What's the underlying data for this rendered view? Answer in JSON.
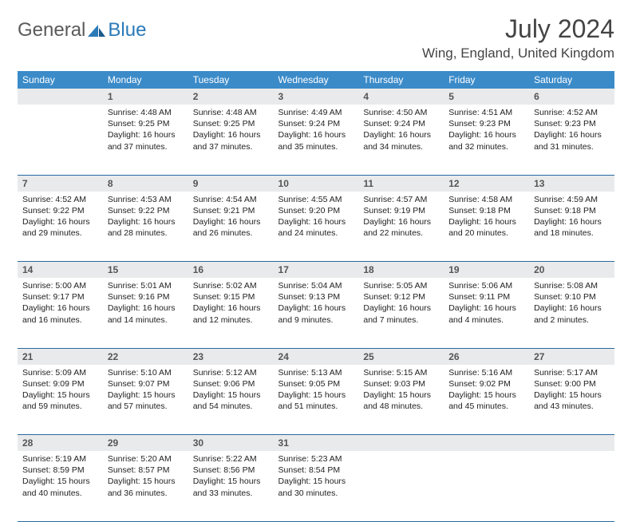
{
  "brand": {
    "text1": "General",
    "text2": "Blue"
  },
  "title": "July 2024",
  "location": "Wing, England, United Kingdom",
  "colors": {
    "header_bg": "#3b8bc9",
    "header_text": "#ffffff",
    "daynum_bg": "#e9eaeb",
    "daynum_text": "#555555",
    "row_border": "#2a6aa0",
    "body_text": "#222222",
    "brand_gray": "#5a5a5a",
    "brand_blue": "#2a7ab8"
  },
  "typography": {
    "title_fontsize": 32,
    "location_fontsize": 17,
    "header_fontsize": 12,
    "daynum_fontsize": 12,
    "cell_fontsize": 10.5
  },
  "day_headers": [
    "Sunday",
    "Monday",
    "Tuesday",
    "Wednesday",
    "Thursday",
    "Friday",
    "Saturday"
  ],
  "weeks": [
    {
      "nums": [
        "",
        "1",
        "2",
        "3",
        "4",
        "5",
        "6"
      ],
      "cells": [
        {},
        {
          "sunrise": "4:48 AM",
          "sunset": "9:25 PM",
          "daylight": "16 hours and 37 minutes."
        },
        {
          "sunrise": "4:48 AM",
          "sunset": "9:25 PM",
          "daylight": "16 hours and 37 minutes."
        },
        {
          "sunrise": "4:49 AM",
          "sunset": "9:24 PM",
          "daylight": "16 hours and 35 minutes."
        },
        {
          "sunrise": "4:50 AM",
          "sunset": "9:24 PM",
          "daylight": "16 hours and 34 minutes."
        },
        {
          "sunrise": "4:51 AM",
          "sunset": "9:23 PM",
          "daylight": "16 hours and 32 minutes."
        },
        {
          "sunrise": "4:52 AM",
          "sunset": "9:23 PM",
          "daylight": "16 hours and 31 minutes."
        }
      ]
    },
    {
      "nums": [
        "7",
        "8",
        "9",
        "10",
        "11",
        "12",
        "13"
      ],
      "cells": [
        {
          "sunrise": "4:52 AM",
          "sunset": "9:22 PM",
          "daylight": "16 hours and 29 minutes."
        },
        {
          "sunrise": "4:53 AM",
          "sunset": "9:22 PM",
          "daylight": "16 hours and 28 minutes."
        },
        {
          "sunrise": "4:54 AM",
          "sunset": "9:21 PM",
          "daylight": "16 hours and 26 minutes."
        },
        {
          "sunrise": "4:55 AM",
          "sunset": "9:20 PM",
          "daylight": "16 hours and 24 minutes."
        },
        {
          "sunrise": "4:57 AM",
          "sunset": "9:19 PM",
          "daylight": "16 hours and 22 minutes."
        },
        {
          "sunrise": "4:58 AM",
          "sunset": "9:18 PM",
          "daylight": "16 hours and 20 minutes."
        },
        {
          "sunrise": "4:59 AM",
          "sunset": "9:18 PM",
          "daylight": "16 hours and 18 minutes."
        }
      ]
    },
    {
      "nums": [
        "14",
        "15",
        "16",
        "17",
        "18",
        "19",
        "20"
      ],
      "cells": [
        {
          "sunrise": "5:00 AM",
          "sunset": "9:17 PM",
          "daylight": "16 hours and 16 minutes."
        },
        {
          "sunrise": "5:01 AM",
          "sunset": "9:16 PM",
          "daylight": "16 hours and 14 minutes."
        },
        {
          "sunrise": "5:02 AM",
          "sunset": "9:15 PM",
          "daylight": "16 hours and 12 minutes."
        },
        {
          "sunrise": "5:04 AM",
          "sunset": "9:13 PM",
          "daylight": "16 hours and 9 minutes."
        },
        {
          "sunrise": "5:05 AM",
          "sunset": "9:12 PM",
          "daylight": "16 hours and 7 minutes."
        },
        {
          "sunrise": "5:06 AM",
          "sunset": "9:11 PM",
          "daylight": "16 hours and 4 minutes."
        },
        {
          "sunrise": "5:08 AM",
          "sunset": "9:10 PM",
          "daylight": "16 hours and 2 minutes."
        }
      ]
    },
    {
      "nums": [
        "21",
        "22",
        "23",
        "24",
        "25",
        "26",
        "27"
      ],
      "cells": [
        {
          "sunrise": "5:09 AM",
          "sunset": "9:09 PM",
          "daylight": "15 hours and 59 minutes."
        },
        {
          "sunrise": "5:10 AM",
          "sunset": "9:07 PM",
          "daylight": "15 hours and 57 minutes."
        },
        {
          "sunrise": "5:12 AM",
          "sunset": "9:06 PM",
          "daylight": "15 hours and 54 minutes."
        },
        {
          "sunrise": "5:13 AM",
          "sunset": "9:05 PM",
          "daylight": "15 hours and 51 minutes."
        },
        {
          "sunrise": "5:15 AM",
          "sunset": "9:03 PM",
          "daylight": "15 hours and 48 minutes."
        },
        {
          "sunrise": "5:16 AM",
          "sunset": "9:02 PM",
          "daylight": "15 hours and 45 minutes."
        },
        {
          "sunrise": "5:17 AM",
          "sunset": "9:00 PM",
          "daylight": "15 hours and 43 minutes."
        }
      ]
    },
    {
      "nums": [
        "28",
        "29",
        "30",
        "31",
        "",
        "",
        ""
      ],
      "cells": [
        {
          "sunrise": "5:19 AM",
          "sunset": "8:59 PM",
          "daylight": "15 hours and 40 minutes."
        },
        {
          "sunrise": "5:20 AM",
          "sunset": "8:57 PM",
          "daylight": "15 hours and 36 minutes."
        },
        {
          "sunrise": "5:22 AM",
          "sunset": "8:56 PM",
          "daylight": "15 hours and 33 minutes."
        },
        {
          "sunrise": "5:23 AM",
          "sunset": "8:54 PM",
          "daylight": "15 hours and 30 minutes."
        },
        {},
        {},
        {}
      ]
    }
  ],
  "labels": {
    "sunrise": "Sunrise:",
    "sunset": "Sunset:",
    "daylight": "Daylight:"
  }
}
